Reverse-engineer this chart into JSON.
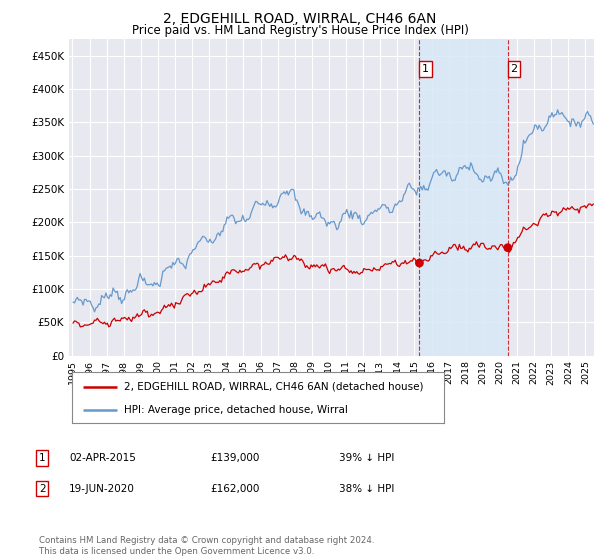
{
  "title": "2, EDGEHILL ROAD, WIRRAL, CH46 6AN",
  "subtitle": "Price paid vs. HM Land Registry's House Price Index (HPI)",
  "title_fontsize": 10,
  "subtitle_fontsize": 8.5,
  "ylim": [
    0,
    475000
  ],
  "yticks": [
    0,
    50000,
    100000,
    150000,
    200000,
    250000,
    300000,
    350000,
    400000,
    450000
  ],
  "background_color": "#ffffff",
  "plot_bg_color": "#e8e8f0",
  "grid_color": "#ffffff",
  "hpi_color": "#6699cc",
  "price_color": "#cc0000",
  "span_color": "#d8e8f8",
  "sale1_date": "02-APR-2015",
  "sale1_price": 139000,
  "sale1_pct": "39% ↓ HPI",
  "sale2_date": "19-JUN-2020",
  "sale2_price": 162000,
  "sale2_pct": "38% ↓ HPI",
  "legend_label_red": "2, EDGEHILL ROAD, WIRRAL, CH46 6AN (detached house)",
  "legend_label_blue": "HPI: Average price, detached house, Wirral",
  "footer": "Contains HM Land Registry data © Crown copyright and database right 2024.\nThis data is licensed under the Open Government Licence v3.0.",
  "x_start_year": 1995,
  "x_end_year": 2025
}
